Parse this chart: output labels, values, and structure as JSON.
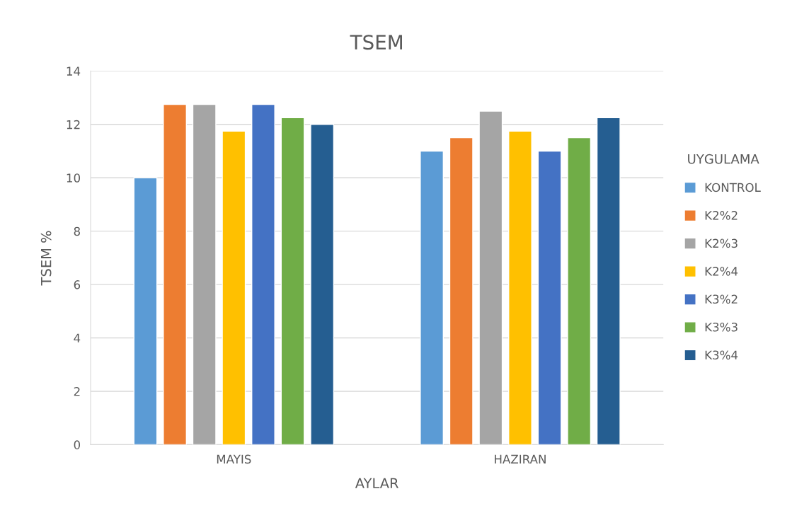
{
  "chart_data": {
    "type": "bar",
    "title": "TSEM",
    "xlabel": "AYLAR",
    "ylabel": "TSEM %",
    "legend_title": "UYGULAMA",
    "categories": [
      "MAYIS",
      "HAZIRAN"
    ],
    "series": [
      {
        "name": "KONTROL",
        "color": "#5b9bd5",
        "values": [
          10,
          11
        ]
      },
      {
        "name": "K2%2",
        "color": "#ed7d31",
        "values": [
          12.75,
          11.5
        ]
      },
      {
        "name": "K2%3",
        "color": "#a5a5a5",
        "values": [
          12.75,
          12.5
        ]
      },
      {
        "name": "K2%4",
        "color": "#ffc000",
        "values": [
          11.75,
          11.75
        ]
      },
      {
        "name": "K3%2",
        "color": "#4472c4",
        "values": [
          12.75,
          11
        ]
      },
      {
        "name": "K3%3",
        "color": "#70ad47",
        "values": [
          12.25,
          11.5
        ]
      },
      {
        "name": "K3%4",
        "color": "#255e91",
        "values": [
          12,
          12.25
        ]
      }
    ],
    "ylim": [
      0,
      14
    ],
    "yticks": [
      0,
      2,
      4,
      6,
      8,
      10,
      12,
      14
    ],
    "grid": "y",
    "legend": "right"
  }
}
